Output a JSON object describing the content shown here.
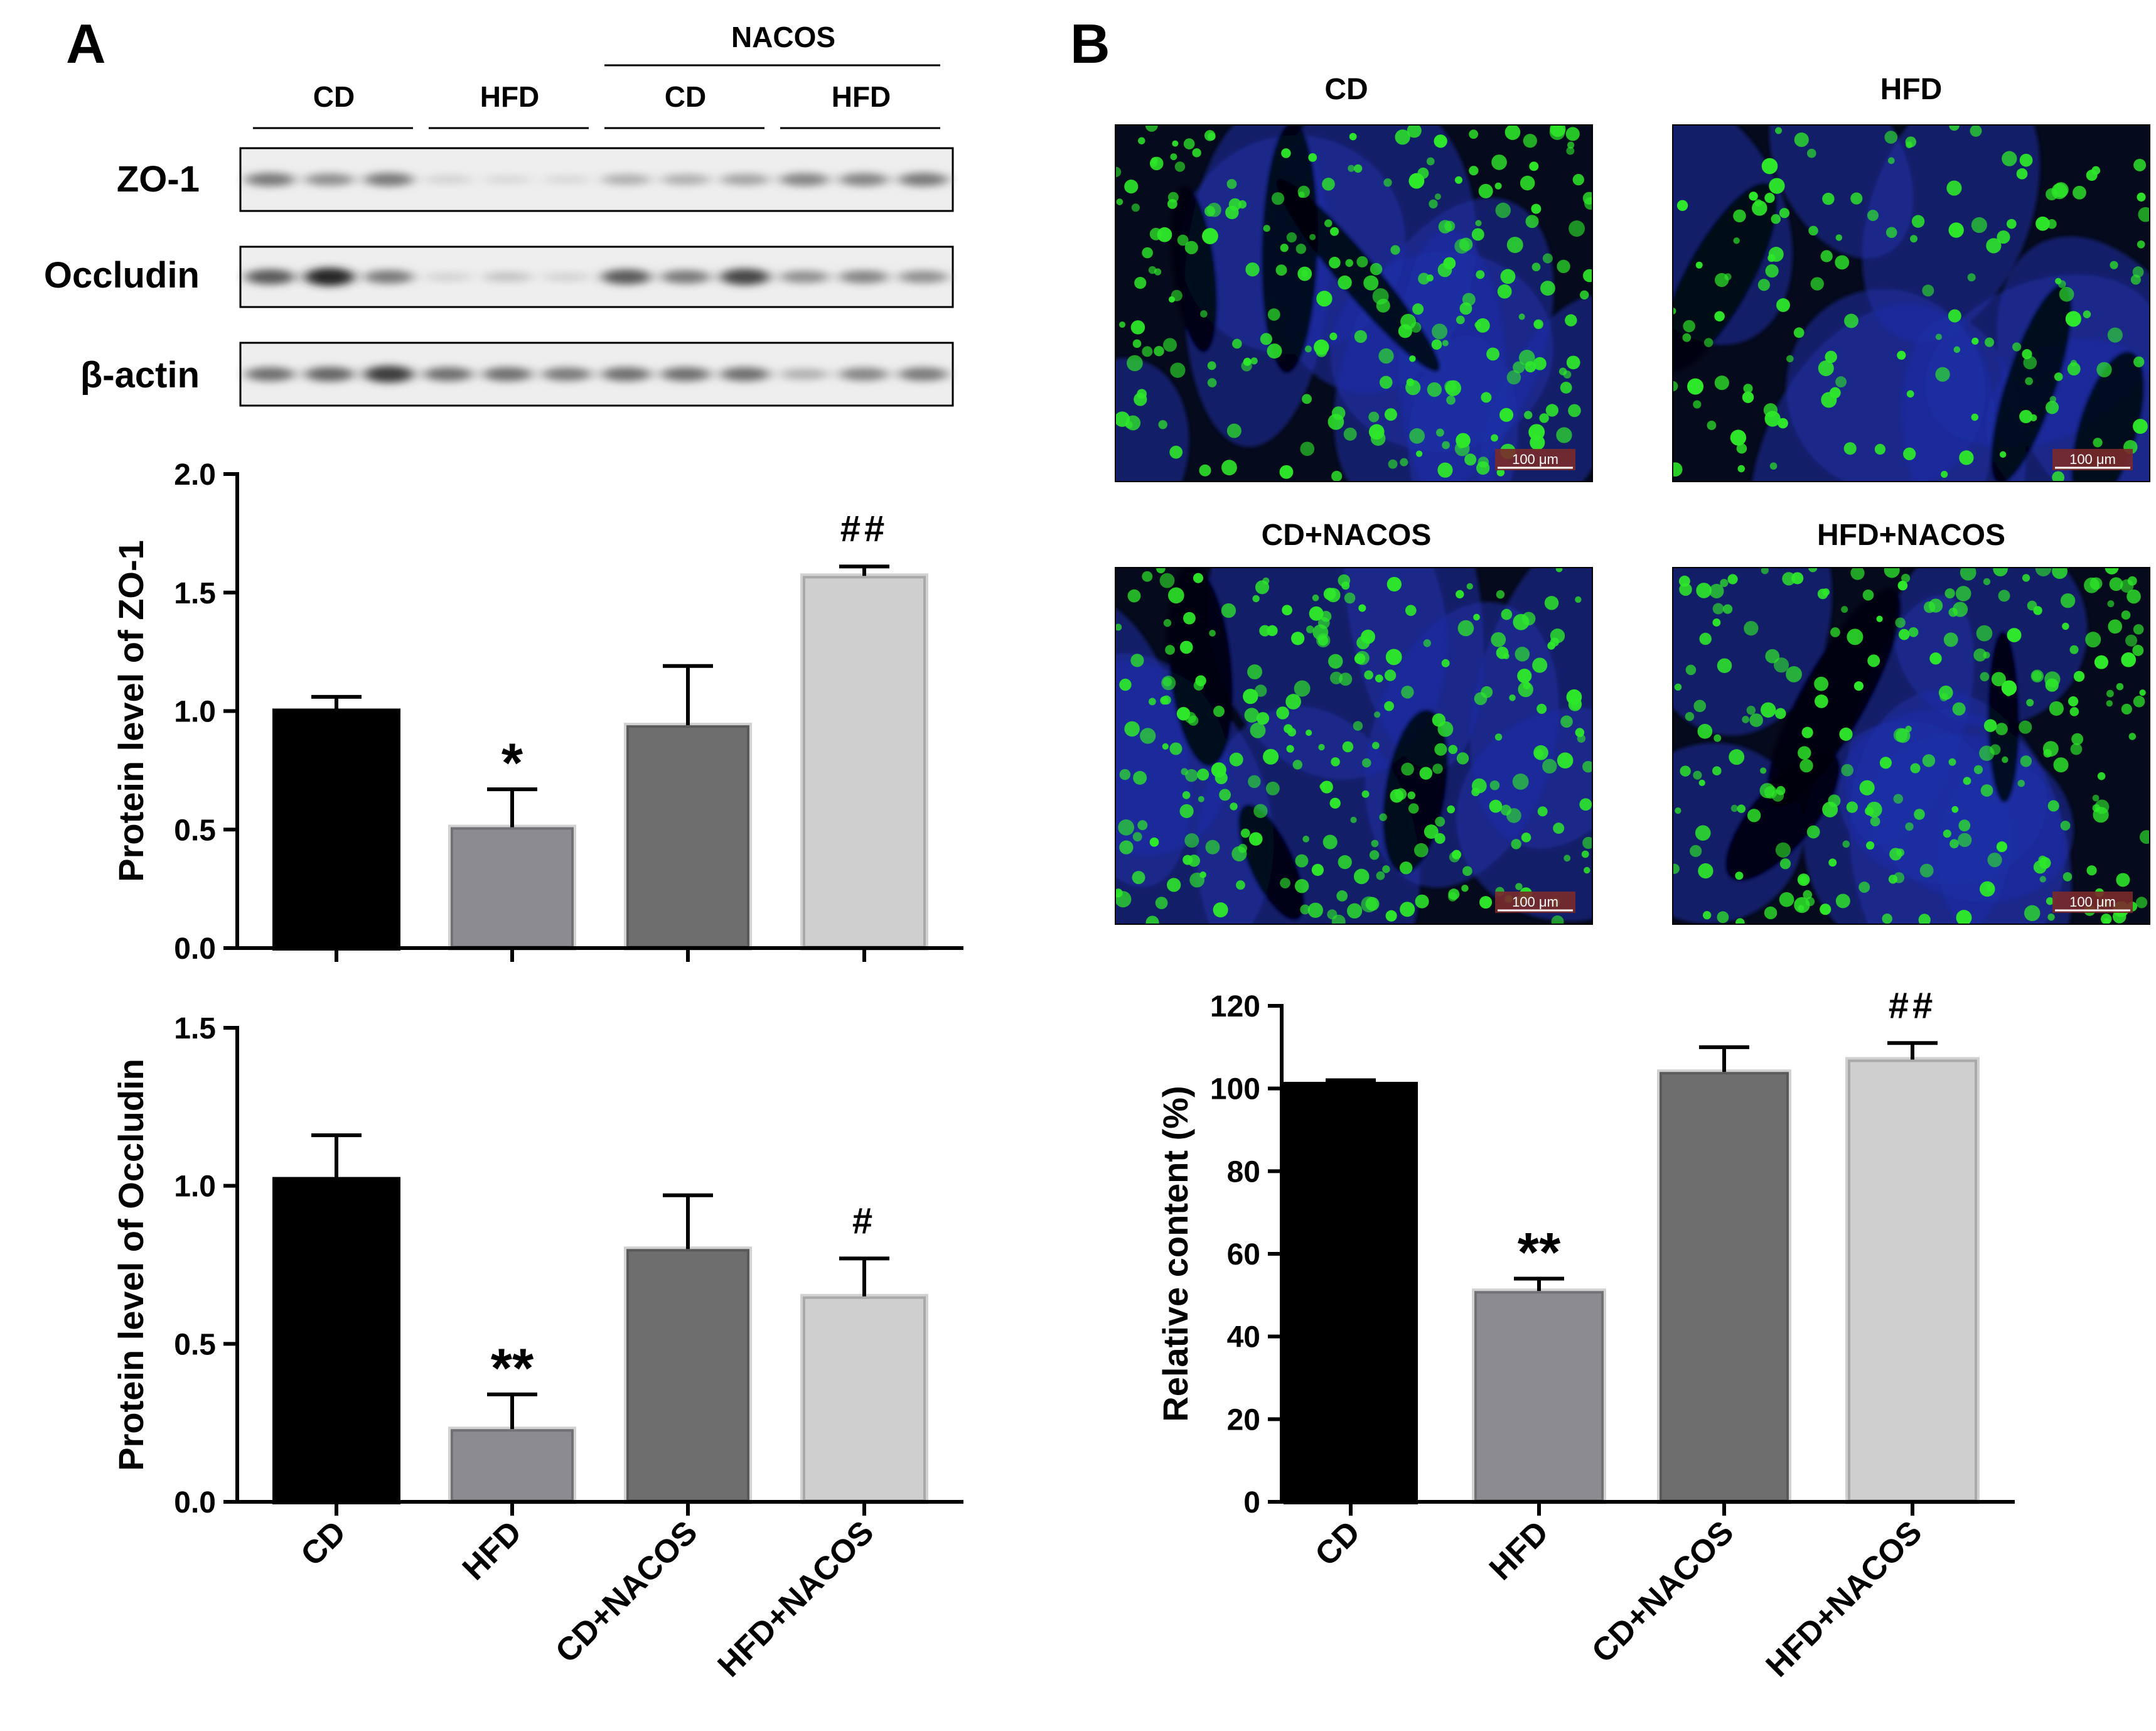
{
  "panel_a": {
    "letter": "A",
    "blot": {
      "group_label": "NACOS",
      "lane_groups": [
        "CD",
        "HFD",
        "CD",
        "HFD"
      ],
      "proteins": [
        {
          "name": "ZO-1",
          "intensities": [
            0.55,
            0.45,
            0.55,
            0.12,
            0.1,
            0.1,
            0.3,
            0.3,
            0.35,
            0.5,
            0.5,
            0.55
          ]
        },
        {
          "name": "Occludin",
          "intensities": [
            0.7,
            0.95,
            0.55,
            0.12,
            0.2,
            0.12,
            0.7,
            0.55,
            0.8,
            0.45,
            0.5,
            0.45
          ]
        },
        {
          "name": "β-actin",
          "intensities": [
            0.6,
            0.65,
            0.85,
            0.6,
            0.6,
            0.55,
            0.6,
            0.6,
            0.6,
            0.3,
            0.5,
            0.55
          ]
        }
      ]
    }
  },
  "panel_b": {
    "letter": "B",
    "micrographs": [
      {
        "label": "CD",
        "scale_bar": "100 μm",
        "signal": 0.75
      },
      {
        "label": "HFD",
        "scale_bar": "100 μm",
        "signal": 0.38
      },
      {
        "label": "CD+NACOS",
        "scale_bar": "100 μm",
        "signal": 0.85
      },
      {
        "label": "HFD+NACOS",
        "scale_bar": "100 μm",
        "signal": 0.8
      }
    ]
  },
  "colors": {
    "bars": [
      "#000000",
      "#8c8c90",
      "#6e6e6e",
      "#cfcfcf"
    ],
    "nuclei": "#1f2fa8",
    "goblet": "#2ee82a",
    "scale_bar": "#7a2a2a"
  },
  "chart_data": [
    {
      "type": "bar",
      "id": "zo1",
      "categories": [
        "CD",
        "HFD",
        "CD+NACOS",
        "HFD+NACOS"
      ],
      "values": [
        1.0,
        0.51,
        0.94,
        1.57
      ],
      "errors": [
        0.06,
        0.16,
        0.25,
        0.04
      ],
      "annotations": [
        "",
        "*",
        "",
        "##"
      ],
      "ylabel": "Protein level of ZO-1",
      "ylim": [
        0,
        2.0
      ],
      "yticks": [
        0.0,
        0.5,
        1.0,
        1.5,
        2.0
      ],
      "ytick_labels": [
        "0.0",
        "0.5",
        "1.0",
        "1.5",
        "2.0"
      ],
      "show_xticklabels": false
    },
    {
      "type": "bar",
      "id": "occludin",
      "categories": [
        "CD",
        "HFD",
        "CD+NACOS",
        "HFD+NACOS"
      ],
      "values": [
        1.02,
        0.23,
        0.8,
        0.65
      ],
      "errors": [
        0.14,
        0.11,
        0.17,
        0.12
      ],
      "annotations": [
        "",
        "**",
        "",
        "#"
      ],
      "ylabel": "Protein level of Occludin",
      "ylim": [
        0,
        1.5
      ],
      "yticks": [
        0.0,
        0.5,
        1.0,
        1.5
      ],
      "ytick_labels": [
        "0.0",
        "0.5",
        "1.0",
        "1.5"
      ],
      "show_xticklabels": true
    },
    {
      "type": "bar",
      "id": "relative",
      "categories": [
        "CD",
        "HFD",
        "CD+NACOS",
        "HFD+NACOS"
      ],
      "values": [
        101,
        51,
        104,
        107
      ],
      "errors": [
        1,
        3,
        6,
        4
      ],
      "annotations": [
        "",
        "**",
        "",
        "##"
      ],
      "ylabel": "Relative content (%)",
      "ylim": [
        0,
        120
      ],
      "yticks": [
        0,
        20,
        40,
        60,
        80,
        100,
        120
      ],
      "ytick_labels": [
        "0",
        "20",
        "40",
        "60",
        "80",
        "100",
        "120"
      ],
      "show_xticklabels": true
    }
  ]
}
